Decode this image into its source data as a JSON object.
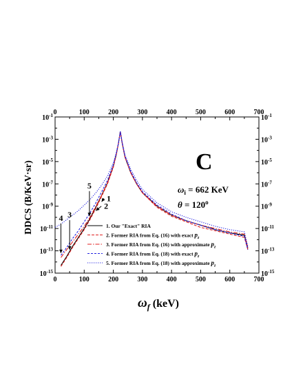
{
  "chart_data": {
    "type": "line",
    "panel_label": "C",
    "params": {
      "omega_i": "ω",
      "omega_i_sub": "i",
      "omega_i_value": " = 662 KeV",
      "theta": "θ",
      "theta_value": " = 120",
      "theta_sup": "o"
    },
    "xlabel": "ω",
    "xlabel_sub": "f",
    "xlabel_unit": " (keV)",
    "ylabel": "DDCS (B/KeV·sr)",
    "xlim": [
      0,
      700
    ],
    "ylim_log10": [
      -15,
      -1
    ],
    "x_ticks": [
      "0",
      "100",
      "200",
      "300",
      "400",
      "500",
      "600",
      "700"
    ],
    "y_left_ticks": [
      {
        "base": "10",
        "exp": "-1"
      },
      {
        "base": "10",
        "exp": "-3"
      },
      {
        "base": "10",
        "exp": "-5"
      },
      {
        "base": "10",
        "exp": "-7"
      },
      {
        "base": "10",
        "exp": "-9"
      },
      {
        "base": "10",
        "exp": "-11"
      },
      {
        "base": "10",
        "exp": "-13"
      },
      {
        "base": "10",
        "exp": "-15"
      }
    ],
    "y_right_ticks": [
      {
        "base": "10",
        "exp": "-1"
      },
      {
        "base": "10",
        "exp": "-3"
      },
      {
        "base": "10",
        "exp": "-5"
      },
      {
        "base": "10",
        "exp": "-7"
      },
      {
        "base": "10",
        "exp": "-9"
      },
      {
        "base": "10",
        "exp": "-11"
      },
      {
        "base": "10",
        "exp": "-13"
      },
      {
        "base": "10",
        "exp": "-15"
      }
    ],
    "log_scale_y": true,
    "grid": false,
    "legend_position": "bottom-center",
    "series": [
      {
        "name": "1. Our \"Exact\" RIA",
        "name_suffix": "",
        "color": "#000000",
        "dash": "",
        "x": [
          20,
          40,
          60,
          80,
          100,
          120,
          140,
          160,
          180,
          200,
          210,
          218,
          224,
          230,
          240,
          260,
          280,
          300,
          350,
          400,
          450,
          500,
          550,
          600,
          650,
          662
        ],
        "log10_y": [
          -14.3,
          -13.5,
          -12.6,
          -11.8,
          -11.0,
          -10.1,
          -9.1,
          -8.0,
          -6.9,
          -5.4,
          -4.4,
          -3.3,
          -2.3,
          -3.3,
          -4.6,
          -6.0,
          -7.0,
          -7.8,
          -9.0,
          -9.8,
          -10.3,
          -10.7,
          -11.1,
          -11.4,
          -11.6,
          -12.8
        ]
      },
      {
        "name": "2. Former RIA from Eq. (16) with exact ",
        "name_suffix": "p",
        "name_sub": "z",
        "color": "#e02020",
        "dash": "4,2",
        "x": [
          20,
          40,
          60,
          80,
          100,
          120,
          140,
          160,
          180,
          200,
          210,
          218,
          224,
          230,
          240,
          260,
          280,
          300,
          350,
          400,
          450,
          500,
          550,
          600,
          650,
          662
        ],
        "log10_y": [
          -14.4,
          -13.6,
          -12.7,
          -11.9,
          -11.1,
          -10.2,
          -9.2,
          -8.1,
          -7.0,
          -5.5,
          -4.4,
          -3.3,
          -2.3,
          -3.3,
          -4.6,
          -6.0,
          -7.0,
          -7.8,
          -9.1,
          -9.9,
          -10.4,
          -10.9,
          -11.2,
          -11.5,
          -11.8,
          -12.9
        ]
      },
      {
        "name": "3. Former RIA from Eq. (16) with approximate ",
        "name_suffix": "p",
        "name_sub": "z",
        "color": "#e02020",
        "dash": "6,2,1.5,2",
        "x": [
          20,
          40,
          60,
          80,
          100,
          120,
          140,
          160,
          180,
          200,
          210,
          218,
          224,
          230,
          240,
          260,
          280,
          300,
          350,
          400,
          450,
          500,
          550,
          600,
          650,
          662
        ],
        "log10_y": [
          -13.6,
          -12.9,
          -12.2,
          -11.5,
          -10.8,
          -10.0,
          -9.0,
          -8.0,
          -6.9,
          -5.4,
          -4.4,
          -3.3,
          -2.3,
          -3.3,
          -4.6,
          -6.0,
          -7.0,
          -7.8,
          -9.0,
          -9.8,
          -10.3,
          -10.7,
          -11.0,
          -11.3,
          -11.5,
          -12.7
        ]
      },
      {
        "name": "4. Former RIA from Eq. (18) with exact ",
        "name_suffix": "p",
        "name_sub": "z",
        "color": "#2020e0",
        "dash": "3,2",
        "x": [
          20,
          40,
          60,
          80,
          100,
          120,
          140,
          160,
          180,
          200,
          210,
          218,
          224,
          230,
          240,
          260,
          280,
          300,
          350,
          400,
          450,
          500,
          550,
          600,
          650,
          662
        ],
        "log10_y": [
          -13.4,
          -12.7,
          -11.9,
          -11.2,
          -10.4,
          -9.6,
          -8.7,
          -7.7,
          -6.7,
          -5.3,
          -4.3,
          -3.3,
          -2.3,
          -3.3,
          -4.5,
          -5.9,
          -6.9,
          -7.7,
          -8.9,
          -9.7,
          -10.3,
          -10.7,
          -11.1,
          -11.4,
          -11.7,
          -12.9
        ]
      },
      {
        "name": "5. Former RIA from Eq. (18) with approximate ",
        "name_suffix": "p",
        "name_sub": "z",
        "color": "#2020e0",
        "dash": "1.2,1.8",
        "x": [
          0,
          20,
          40,
          60,
          80,
          100,
          120,
          140,
          160,
          180,
          200,
          210,
          218,
          224,
          230,
          240,
          260,
          280,
          300,
          350,
          400,
          450,
          500,
          550,
          600,
          650,
          662
        ],
        "log10_y": [
          -10.9,
          -10.6,
          -10.2,
          -9.8,
          -9.4,
          -8.9,
          -8.4,
          -7.8,
          -7.1,
          -6.3,
          -5.1,
          -4.2,
          -3.3,
          -2.3,
          -3.2,
          -4.4,
          -5.7,
          -6.7,
          -7.5,
          -8.7,
          -9.5,
          -10.0,
          -10.4,
          -10.8,
          -11.1,
          -11.3,
          -12.6
        ]
      }
    ],
    "annotations": [
      {
        "label": "1",
        "tip_x": 160,
        "tip_log10_y": -8.6,
        "label_x": 182,
        "label_log10_y": -8.3
      },
      {
        "label": "2",
        "tip_x": 140,
        "tip_log10_y": -9.4,
        "label_x": 173,
        "label_log10_y": -9.0
      },
      {
        "label": "3",
        "tip_x": 50,
        "tip_log10_y": -12.9,
        "label_x": 50,
        "label_log10_y": -10.0
      },
      {
        "label": "4",
        "tip_x": 20,
        "tip_log10_y": -13.2,
        "label_x": 20,
        "label_log10_y": -10.3
      },
      {
        "label": "5",
        "tip_x": 118,
        "tip_log10_y": -9.9,
        "label_x": 118,
        "label_log10_y": -7.4
      }
    ]
  }
}
